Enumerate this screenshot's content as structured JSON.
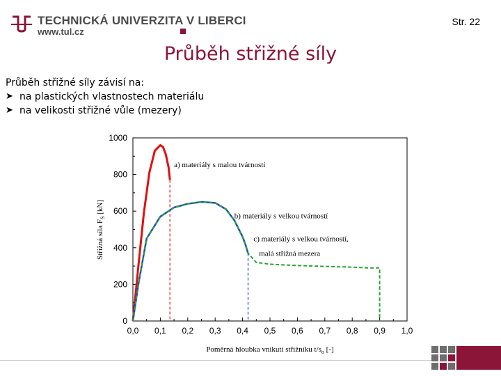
{
  "header": {
    "university": "TECHNICKÁ UNIVERZITA V LIBERCI",
    "website": "www.tul.cz",
    "page_number": "Str. 22"
  },
  "slide": {
    "title": "Průběh střižné síly",
    "intro": "Průběh střižné síly závisí na:",
    "bullets": [
      "na plastických vlastnostech materiálu",
      "na velikosti střižné vůle (mezery)"
    ]
  },
  "colors": {
    "brand": "#8b1538",
    "series_a": "#e01010",
    "series_b": "#1e3fd8",
    "series_c": "#2aa52a"
  },
  "chart_data": {
    "type": "line",
    "xlabel": "Poměrná hloubka vnikuti střižníku t/s",
    "xlabel_sub": "o",
    "xlabel_unit": " [-]",
    "ylabel": "Střižná síla F",
    "ylabel_sub": "S",
    "ylabel_unit": " [kN]",
    "xlim": [
      0,
      1.0
    ],
    "ylim": [
      0,
      1000
    ],
    "xticks": [
      "0,0",
      "0,1",
      "0,2",
      "0,3",
      "0,4",
      "0,5",
      "0,6",
      "0,7",
      "0,8",
      "0,9",
      "1,0"
    ],
    "yticks": [
      "0",
      "200",
      "400",
      "600",
      "800",
      "1000"
    ],
    "series": [
      {
        "name": "a) materiály s malou tvárností",
        "color": "#e01010",
        "x": [
          0.0,
          0.02,
          0.04,
          0.06,
          0.08,
          0.1,
          0.11,
          0.12,
          0.13,
          0.135
        ],
        "y": [
          0,
          300,
          590,
          810,
          930,
          960,
          950,
          910,
          840,
          770
        ]
      },
      {
        "name": "b) materiály s velkou tvárností",
        "color": "#1e3fd8",
        "x": [
          0.0,
          0.02,
          0.05,
          0.1,
          0.15,
          0.2,
          0.25,
          0.3,
          0.34,
          0.37,
          0.4,
          0.41,
          0.42
        ],
        "y": [
          0,
          200,
          450,
          570,
          620,
          640,
          650,
          645,
          610,
          550,
          460,
          420,
          370
        ]
      },
      {
        "name": "c) materiály s velkou tvárností, malá střižná mezera",
        "color": "#2aa52a",
        "x": [
          0.0,
          0.02,
          0.05,
          0.1,
          0.15,
          0.2,
          0.25,
          0.3,
          0.34,
          0.37,
          0.4,
          0.41,
          0.42,
          0.45,
          0.5,
          0.6,
          0.7,
          0.8,
          0.86,
          0.9,
          0.9
        ],
        "y": [
          0,
          200,
          450,
          570,
          620,
          640,
          650,
          645,
          610,
          550,
          460,
          420,
          370,
          320,
          310,
          303,
          298,
          294,
          290,
          290,
          0
        ]
      }
    ],
    "drop_lines": [
      {
        "x": 0.135,
        "y": 770,
        "color": "#e01010"
      },
      {
        "x": 0.42,
        "y": 370,
        "color": "#1e3fd8"
      }
    ],
    "annotations": [
      {
        "text": "a) materiály s malou tvárností",
        "x": 0.15,
        "y": 840
      },
      {
        "text": "b) materiály s velkou tvárností",
        "x": 0.37,
        "y": 560
      },
      {
        "text": "c) materiály s velkou tvárností,",
        "x": 0.44,
        "y": 435
      },
      {
        "text": "malá střižná mezera",
        "x": 0.46,
        "y": 355
      }
    ]
  }
}
